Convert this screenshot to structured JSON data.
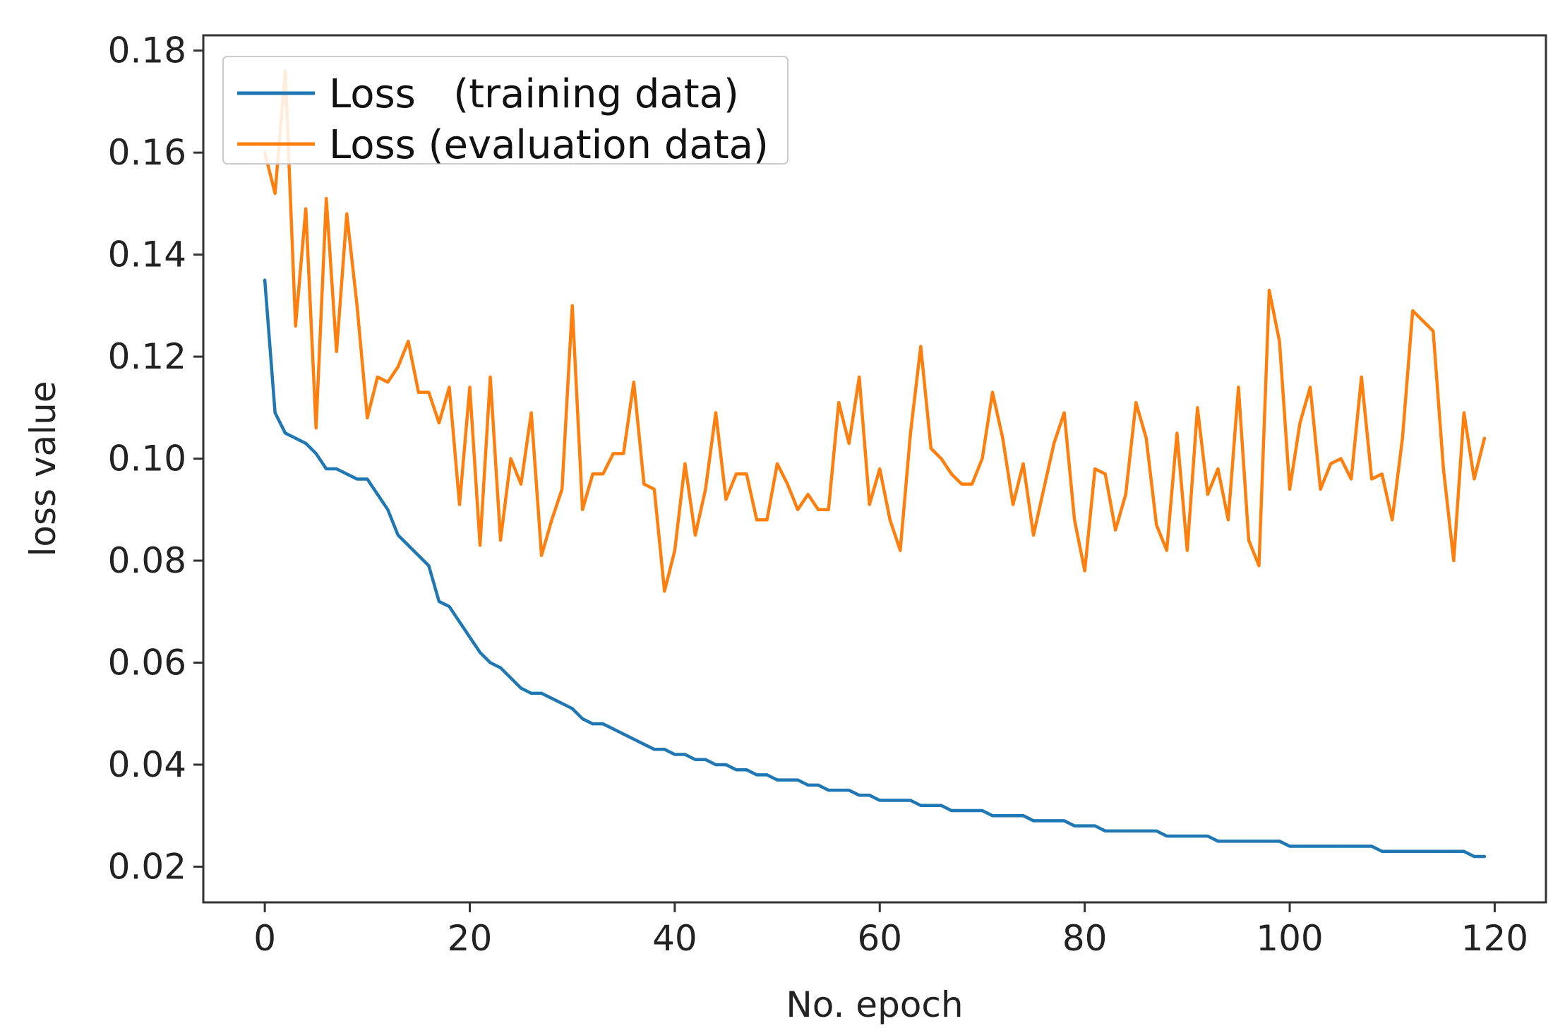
{
  "chart_data": {
    "type": "line",
    "title": "",
    "xlabel": "No. epoch",
    "ylabel": "loss value",
    "xlim": [
      -6,
      125
    ],
    "ylim": [
      0.013,
      0.183
    ],
    "xticks": [
      0,
      20,
      40,
      60,
      80,
      100,
      120
    ],
    "xtick_labels": [
      "0",
      "20",
      "40",
      "60",
      "80",
      "100",
      "120"
    ],
    "yticks": [
      0.02,
      0.04,
      0.06,
      0.08,
      0.1,
      0.12,
      0.14,
      0.16,
      0.18
    ],
    "ytick_labels": [
      "0.02",
      "0.04",
      "0.06",
      "0.08",
      "0.10",
      "0.12",
      "0.14",
      "0.16",
      "0.18"
    ],
    "grid": false,
    "legend_position": "top-left",
    "series": [
      {
        "name": "Loss   (training data)",
        "color": "#1f77b4",
        "values": [
          0.135,
          0.109,
          0.105,
          0.104,
          0.103,
          0.101,
          0.098,
          0.098,
          0.097,
          0.096,
          0.096,
          0.093,
          0.09,
          0.085,
          0.083,
          0.081,
          0.079,
          0.072,
          0.071,
          0.068,
          0.065,
          0.062,
          0.06,
          0.059,
          0.057,
          0.055,
          0.054,
          0.054,
          0.053,
          0.052,
          0.051,
          0.049,
          0.048,
          0.048,
          0.047,
          0.046,
          0.045,
          0.044,
          0.043,
          0.043,
          0.042,
          0.042,
          0.041,
          0.041,
          0.04,
          0.04,
          0.039,
          0.039,
          0.038,
          0.038,
          0.037,
          0.037,
          0.037,
          0.036,
          0.036,
          0.035,
          0.035,
          0.035,
          0.034,
          0.034,
          0.033,
          0.033,
          0.033,
          0.033,
          0.032,
          0.032,
          0.032,
          0.031,
          0.031,
          0.031,
          0.031,
          0.03,
          0.03,
          0.03,
          0.03,
          0.029,
          0.029,
          0.029,
          0.029,
          0.028,
          0.028,
          0.028,
          0.027,
          0.027,
          0.027,
          0.027,
          0.027,
          0.027,
          0.026,
          0.026,
          0.026,
          0.026,
          0.026,
          0.025,
          0.025,
          0.025,
          0.025,
          0.025,
          0.025,
          0.025,
          0.024,
          0.024,
          0.024,
          0.024,
          0.024,
          0.024,
          0.024,
          0.024,
          0.024,
          0.023,
          0.023,
          0.023,
          0.023,
          0.023,
          0.023,
          0.023,
          0.023,
          0.023,
          0.022,
          0.022
        ]
      },
      {
        "name": "Loss (evaluation data)",
        "color": "#ff7f0e",
        "values": [
          0.16,
          0.152,
          0.176,
          0.126,
          0.149,
          0.106,
          0.151,
          0.121,
          0.148,
          0.13,
          0.108,
          0.116,
          0.115,
          0.118,
          0.123,
          0.113,
          0.113,
          0.107,
          0.114,
          0.091,
          0.114,
          0.083,
          0.116,
          0.084,
          0.1,
          0.095,
          0.109,
          0.081,
          0.088,
          0.094,
          0.13,
          0.09,
          0.097,
          0.097,
          0.101,
          0.101,
          0.115,
          0.095,
          0.094,
          0.074,
          0.082,
          0.099,
          0.085,
          0.094,
          0.109,
          0.092,
          0.097,
          0.097,
          0.088,
          0.088,
          0.099,
          0.095,
          0.09,
          0.093,
          0.09,
          0.09,
          0.111,
          0.103,
          0.116,
          0.091,
          0.098,
          0.088,
          0.082,
          0.105,
          0.122,
          0.102,
          0.1,
          0.097,
          0.095,
          0.095,
          0.1,
          0.113,
          0.104,
          0.091,
          0.099,
          0.085,
          0.094,
          0.103,
          0.109,
          0.088,
          0.078,
          0.098,
          0.097,
          0.086,
          0.093,
          0.111,
          0.104,
          0.087,
          0.082,
          0.105,
          0.082,
          0.11,
          0.093,
          0.098,
          0.088,
          0.114,
          0.084,
          0.079,
          0.133,
          0.123,
          0.094,
          0.107,
          0.114,
          0.094,
          0.099,
          0.1,
          0.096,
          0.116,
          0.096,
          0.097,
          0.088,
          0.104,
          0.129,
          0.127,
          0.125,
          0.098,
          0.08,
          0.109,
          0.096,
          0.104
        ]
      }
    ]
  }
}
